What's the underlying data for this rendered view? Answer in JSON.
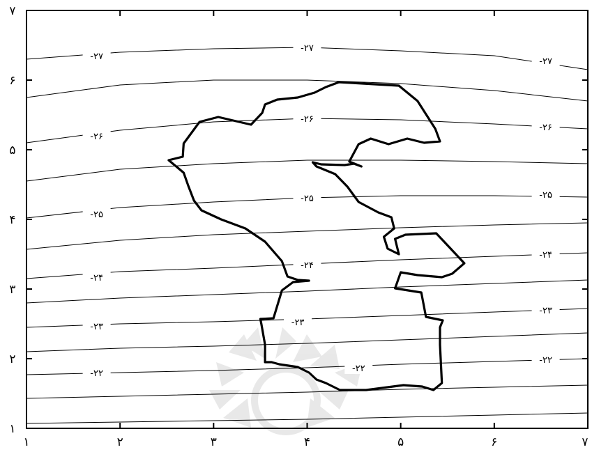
{
  "map": {
    "x_ticks": [
      {
        "value": 1,
        "label": "۱"
      },
      {
        "value": 2,
        "label": "۲"
      },
      {
        "value": 3,
        "label": "۳"
      },
      {
        "value": 4,
        "label": "۴"
      },
      {
        "value": 5,
        "label": "۵"
      },
      {
        "value": 6,
        "label": "۶"
      },
      {
        "value": 7,
        "label": "۷"
      }
    ],
    "y_ticks": [
      {
        "value": 1,
        "label": "۱"
      },
      {
        "value": 2,
        "label": "۲"
      },
      {
        "value": 3,
        "label": "۳"
      },
      {
        "value": 4,
        "label": "۴"
      },
      {
        "value": 5,
        "label": "۵"
      },
      {
        "value": 6,
        "label": "۶"
      },
      {
        "value": 7,
        "label": "۷"
      }
    ],
    "contour_labels": [
      {
        "text": "-۲۷",
        "x": 1.75,
        "y": 6.35
      },
      {
        "text": "-۲۷",
        "x": 4.0,
        "y": 6.47
      },
      {
        "text": "-۲۷",
        "x": 6.55,
        "y": 6.28
      },
      {
        "text": "-۲۶",
        "x": 1.75,
        "y": 5.2
      },
      {
        "text": "-۲۶",
        "x": 4.0,
        "y": 5.45
      },
      {
        "text": "-۲۶",
        "x": 6.55,
        "y": 5.33
      },
      {
        "text": "-۲۵",
        "x": 1.75,
        "y": 4.08
      },
      {
        "text": "-۲۵",
        "x": 4.0,
        "y": 4.31
      },
      {
        "text": "-۲۵",
        "x": 6.55,
        "y": 4.36
      },
      {
        "text": "-۲۴",
        "x": 1.75,
        "y": 3.17
      },
      {
        "text": "-۲۴",
        "x": 4.0,
        "y": 3.35
      },
      {
        "text": "-۲۴",
        "x": 6.55,
        "y": 3.5
      },
      {
        "text": "-۲۳",
        "x": 1.75,
        "y": 2.47
      },
      {
        "text": "-۲۳",
        "x": 3.9,
        "y": 2.53
      },
      {
        "text": "-۲۳",
        "x": 6.55,
        "y": 2.7
      },
      {
        "text": "-۲۲",
        "x": 1.75,
        "y": 1.8
      },
      {
        "text": "-۲۲",
        "x": 4.55,
        "y": 1.87
      },
      {
        "text": "-۲۲",
        "x": 6.55,
        "y": 1.99
      }
    ],
    "isolines": [
      [
        [
          1,
          6.3
        ],
        [
          2,
          6.4
        ],
        [
          3,
          6.45
        ],
        [
          4,
          6.47
        ],
        [
          5,
          6.42
        ],
        [
          6,
          6.35
        ],
        [
          7,
          6.15
        ]
      ],
      [
        [
          1,
          5.75
        ],
        [
          2,
          5.93
        ],
        [
          3,
          6.0
        ],
        [
          4,
          6.0
        ],
        [
          5,
          5.95
        ],
        [
          6,
          5.85
        ],
        [
          7,
          5.7
        ]
      ],
      [
        [
          1,
          5.1
        ],
        [
          2,
          5.28
        ],
        [
          3,
          5.4
        ],
        [
          4,
          5.45
        ],
        [
          5,
          5.43
        ],
        [
          6,
          5.37
        ],
        [
          7,
          5.3
        ]
      ],
      [
        [
          1,
          4.55
        ],
        [
          2,
          4.72
        ],
        [
          3,
          4.8
        ],
        [
          4,
          4.85
        ],
        [
          5,
          4.85
        ],
        [
          6,
          4.83
        ],
        [
          7,
          4.8
        ]
      ],
      [
        [
          1,
          4.02
        ],
        [
          2,
          4.17
        ],
        [
          3,
          4.25
        ],
        [
          4,
          4.31
        ],
        [
          5,
          4.34
        ],
        [
          6,
          4.34
        ],
        [
          7,
          4.32
        ]
      ],
      [
        [
          1,
          3.57
        ],
        [
          2,
          3.7
        ],
        [
          3,
          3.78
        ],
        [
          4,
          3.83
        ],
        [
          5,
          3.88
        ],
        [
          6,
          3.92
        ],
        [
          7,
          3.95
        ]
      ],
      [
        [
          1,
          3.15
        ],
        [
          2,
          3.25
        ],
        [
          3,
          3.3
        ],
        [
          4,
          3.36
        ],
        [
          5,
          3.42
        ],
        [
          6,
          3.47
        ],
        [
          7,
          3.52
        ]
      ],
      [
        [
          1,
          2.8
        ],
        [
          2,
          2.87
        ],
        [
          3,
          2.92
        ],
        [
          4,
          2.97
        ],
        [
          5,
          3.03
        ],
        [
          6,
          3.08
        ],
        [
          7,
          3.13
        ]
      ],
      [
        [
          1,
          2.45
        ],
        [
          2,
          2.5
        ],
        [
          3,
          2.53
        ],
        [
          4,
          2.57
        ],
        [
          5,
          2.62
        ],
        [
          6,
          2.67
        ],
        [
          7,
          2.72
        ]
      ],
      [
        [
          1,
          2.1
        ],
        [
          2,
          2.15
        ],
        [
          3,
          2.18
        ],
        [
          4,
          2.22
        ],
        [
          5,
          2.27
        ],
        [
          6,
          2.32
        ],
        [
          7,
          2.37
        ]
      ],
      [
        [
          1,
          1.77
        ],
        [
          2,
          1.8
        ],
        [
          3,
          1.83
        ],
        [
          4,
          1.87
        ],
        [
          5,
          1.92
        ],
        [
          6,
          1.96
        ],
        [
          7,
          2.0
        ]
      ],
      [
        [
          1,
          1.43
        ],
        [
          2,
          1.46
        ],
        [
          3,
          1.49
        ],
        [
          4,
          1.52
        ],
        [
          5,
          1.56
        ],
        [
          6,
          1.59
        ],
        [
          7,
          1.62
        ]
      ],
      [
        [
          1,
          1.07
        ],
        [
          2,
          1.09
        ],
        [
          3,
          1.11
        ],
        [
          4,
          1.13
        ],
        [
          5,
          1.16
        ],
        [
          6,
          1.19
        ],
        [
          7,
          1.22
        ]
      ]
    ],
    "boundary": [
      [
        4.34,
        5.97
      ],
      [
        4.98,
        5.92
      ],
      [
        5.18,
        5.7
      ],
      [
        5.37,
        5.3
      ],
      [
        5.42,
        5.12
      ],
      [
        5.25,
        5.1
      ],
      [
        5.07,
        5.16
      ],
      [
        4.87,
        5.08
      ],
      [
        4.68,
        5.16
      ],
      [
        4.55,
        5.08
      ],
      [
        4.45,
        4.83
      ],
      [
        4.58,
        4.76
      ],
      [
        4.5,
        4.8
      ],
      [
        4.4,
        4.78
      ],
      [
        4.15,
        4.79
      ],
      [
        4.06,
        4.82
      ],
      [
        4.1,
        4.76
      ],
      [
        4.3,
        4.65
      ],
      [
        4.43,
        4.47
      ],
      [
        4.55,
        4.25
      ],
      [
        4.76,
        4.1
      ],
      [
        4.9,
        4.03
      ],
      [
        4.93,
        3.87
      ],
      [
        4.82,
        3.75
      ],
      [
        4.86,
        3.58
      ],
      [
        4.98,
        3.5
      ],
      [
        4.94,
        3.72
      ],
      [
        5.05,
        3.78
      ],
      [
        5.38,
        3.8
      ],
      [
        5.52,
        3.6
      ],
      [
        5.68,
        3.37
      ],
      [
        5.55,
        3.22
      ],
      [
        5.44,
        3.17
      ],
      [
        5.18,
        3.2
      ],
      [
        5.0,
        3.24
      ],
      [
        4.94,
        3.01
      ],
      [
        5.22,
        2.95
      ],
      [
        5.27,
        2.6
      ],
      [
        5.45,
        2.55
      ],
      [
        5.42,
        2.45
      ],
      [
        5.42,
        2.2
      ],
      [
        5.44,
        1.65
      ],
      [
        5.35,
        1.55
      ],
      [
        5.23,
        1.6
      ],
      [
        5.03,
        1.62
      ],
      [
        4.63,
        1.55
      ],
      [
        4.35,
        1.55
      ],
      [
        4.2,
        1.65
      ],
      [
        4.1,
        1.7
      ],
      [
        4.02,
        1.8
      ],
      [
        3.9,
        1.88
      ],
      [
        3.7,
        1.92
      ],
      [
        3.62,
        1.95
      ],
      [
        3.55,
        1.95
      ],
      [
        3.55,
        2.2
      ],
      [
        3.51,
        2.5
      ],
      [
        3.5,
        2.57
      ],
      [
        3.64,
        2.58
      ],
      [
        3.73,
        2.98
      ],
      [
        3.85,
        3.1
      ],
      [
        4.02,
        3.12
      ],
      [
        3.9,
        3.13
      ],
      [
        3.79,
        3.18
      ],
      [
        3.73,
        3.4
      ],
      [
        3.55,
        3.68
      ],
      [
        3.34,
        3.87
      ],
      [
        3.08,
        4.0
      ],
      [
        2.87,
        4.13
      ],
      [
        2.79,
        4.27
      ],
      [
        2.73,
        4.48
      ],
      [
        2.68,
        4.67
      ],
      [
        2.52,
        4.85
      ],
      [
        2.67,
        4.9
      ],
      [
        2.68,
        5.09
      ],
      [
        2.74,
        5.2
      ],
      [
        2.85,
        5.4
      ],
      [
        3.05,
        5.47
      ],
      [
        3.4,
        5.36
      ],
      [
        3.52,
        5.53
      ],
      [
        3.55,
        5.65
      ],
      [
        3.68,
        5.72
      ],
      [
        3.9,
        5.75
      ],
      [
        4.08,
        5.82
      ],
      [
        4.2,
        5.9
      ]
    ]
  }
}
